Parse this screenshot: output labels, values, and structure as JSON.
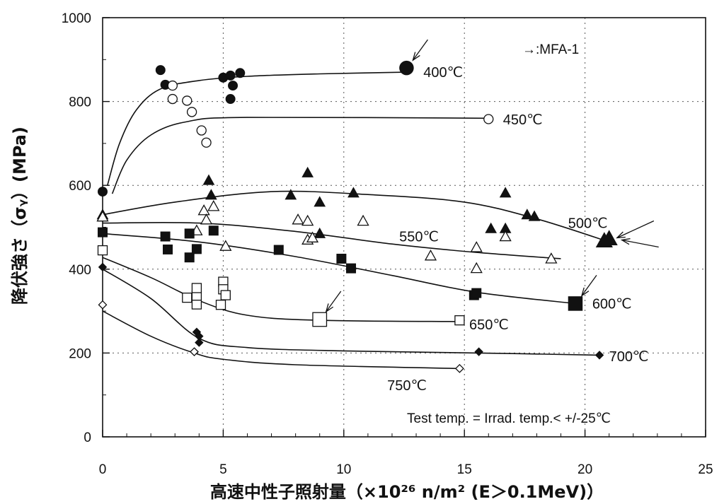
{
  "chart_data": {
    "type": "scatter",
    "xlabel": "高速中性子照射量（×10²⁶ n/m² (E＞0.1MeV)）",
    "ylabel": "降伏強さ（σᵧ）(MPa)",
    "xlim": [
      0,
      25
    ],
    "ylim": [
      0,
      1000
    ],
    "x_ticks": [
      "0",
      "5",
      "10",
      "15",
      "20",
      "25"
    ],
    "y_ticks": [
      "0",
      "200",
      "400",
      "600",
      "800",
      "1000"
    ],
    "grid": true,
    "legend_note": "→:MFA-1",
    "annotation": "Test temp. = Irrad. temp.< +/-25℃",
    "series": [
      {
        "name": "400℃",
        "marker": "filled-circle",
        "points": [
          [
            0,
            585
          ],
          [
            2.4,
            875
          ],
          [
            2.6,
            840
          ],
          [
            5,
            857
          ],
          [
            5.3,
            862
          ],
          [
            5.7,
            868
          ],
          [
            5.4,
            838
          ],
          [
            5.3,
            806
          ],
          [
            12.6,
            880
          ]
        ],
        "curve": [
          [
            0.2,
            600
          ],
          [
            0.7,
            700
          ],
          [
            1.4,
            780
          ],
          [
            2.4,
            830
          ],
          [
            4,
            850
          ],
          [
            6,
            860
          ],
          [
            9,
            866
          ],
          [
            12.6,
            870
          ]
        ],
        "mfa1": [
          [
            12.6,
            880
          ]
        ]
      },
      {
        "name": "450℃",
        "marker": "open-circle",
        "points": [
          [
            2.9,
            838
          ],
          [
            2.9,
            806
          ],
          [
            3.5,
            802
          ],
          [
            3.7,
            775
          ],
          [
            4.1,
            731
          ],
          [
            4.3,
            702
          ],
          [
            16,
            758
          ]
        ],
        "curve": [
          [
            0.4,
            580
          ],
          [
            1.0,
            660
          ],
          [
            2.0,
            720
          ],
          [
            3.5,
            752
          ],
          [
            6,
            762
          ],
          [
            16,
            760
          ]
        ],
        "mfa1": []
      },
      {
        "name": "500℃",
        "marker": "filled-triangle",
        "points": [
          [
            0,
            530
          ],
          [
            4.4,
            612
          ],
          [
            4.5,
            577
          ],
          [
            8.5,
            630
          ],
          [
            7.8,
            577
          ],
          [
            9.0,
            560
          ],
          [
            10.4,
            582
          ],
          [
            9.0,
            485
          ],
          [
            16.7,
            582
          ],
          [
            16.1,
            497
          ],
          [
            16.7,
            497
          ],
          [
            17.6,
            530
          ],
          [
            17.9,
            526
          ],
          [
            20.8,
            468
          ],
          [
            21.0,
            473
          ]
        ],
        "curve": [
          [
            0,
            530
          ],
          [
            3,
            560
          ],
          [
            7,
            585
          ],
          [
            11,
            578
          ],
          [
            15,
            560
          ],
          [
            18,
            520
          ],
          [
            21,
            465
          ]
        ],
        "mfa1": [
          [
            20.8,
            468
          ],
          [
            21.0,
            473
          ]
        ]
      },
      {
        "name": "550℃",
        "marker": "open-triangle",
        "points": [
          [
            0,
            525
          ],
          [
            3.9,
            492
          ],
          [
            4.2,
            540
          ],
          [
            4.3,
            518
          ],
          [
            4.6,
            550
          ],
          [
            5.1,
            455
          ],
          [
            8.1,
            518
          ],
          [
            8.5,
            470
          ],
          [
            8.5,
            515
          ],
          [
            8.7,
            475
          ],
          [
            10.8,
            515
          ],
          [
            13.6,
            432
          ],
          [
            15.5,
            452
          ],
          [
            15.5,
            402
          ],
          [
            16.7,
            478
          ],
          [
            18.6,
            425
          ]
        ],
        "curve": [
          [
            0,
            510
          ],
          [
            4,
            510
          ],
          [
            8,
            490
          ],
          [
            12,
            460
          ],
          [
            15.5,
            440
          ],
          [
            19,
            425
          ]
        ],
        "mfa1": []
      },
      {
        "name": "600℃",
        "marker": "filled-square",
        "points": [
          [
            0,
            488
          ],
          [
            2.6,
            478
          ],
          [
            2.7,
            447
          ],
          [
            3.6,
            485
          ],
          [
            3.6,
            428
          ],
          [
            3.9,
            448
          ],
          [
            4.6,
            492
          ],
          [
            7.3,
            446
          ],
          [
            9.9,
            425
          ],
          [
            10.3,
            402
          ],
          [
            15.4,
            338
          ],
          [
            15.5,
            343
          ],
          [
            19.6,
            318
          ]
        ],
        "curve": [
          [
            0,
            485
          ],
          [
            4,
            465
          ],
          [
            8,
            430
          ],
          [
            12,
            385
          ],
          [
            15.5,
            345
          ],
          [
            19.6,
            318
          ]
        ],
        "mfa1": [
          [
            19.6,
            318
          ]
        ]
      },
      {
        "name": "650℃",
        "marker": "open-square",
        "points": [
          [
            0,
            445
          ],
          [
            3.5,
            332
          ],
          [
            3.9,
            316
          ],
          [
            3.9,
            337
          ],
          [
            3.9,
            355
          ],
          [
            4.9,
            315
          ],
          [
            5.0,
            370
          ],
          [
            5.0,
            352
          ],
          [
            5.1,
            338
          ],
          [
            9.0,
            280
          ],
          [
            14.8,
            278
          ]
        ],
        "curve": [
          [
            0,
            428
          ],
          [
            2,
            380
          ],
          [
            4,
            325
          ],
          [
            6,
            290
          ],
          [
            9,
            278
          ],
          [
            14.8,
            275
          ]
        ],
        "mfa1": [
          [
            9.0,
            280
          ]
        ]
      },
      {
        "name": "700℃",
        "marker": "filled-diamond",
        "points": [
          [
            0,
            405
          ],
          [
            3.9,
            250
          ],
          [
            4.0,
            240
          ],
          [
            4.0,
            225
          ],
          [
            15.6,
            203
          ],
          [
            20.6,
            195
          ]
        ],
        "curve": [
          [
            0,
            400
          ],
          [
            2,
            330
          ],
          [
            4,
            235
          ],
          [
            6,
            213
          ],
          [
            10,
            205
          ],
          [
            15.6,
            200
          ],
          [
            20.6,
            195
          ]
        ],
        "mfa1": []
      },
      {
        "name": "750℃",
        "marker": "open-diamond",
        "points": [
          [
            0,
            315
          ],
          [
            3.8,
            203
          ],
          [
            14.8,
            163
          ]
        ],
        "curve": [
          [
            0,
            300
          ],
          [
            2,
            240
          ],
          [
            3.8,
            200
          ],
          [
            5,
            185
          ],
          [
            8,
            172
          ],
          [
            14.8,
            163
          ]
        ],
        "mfa1": []
      }
    ]
  }
}
